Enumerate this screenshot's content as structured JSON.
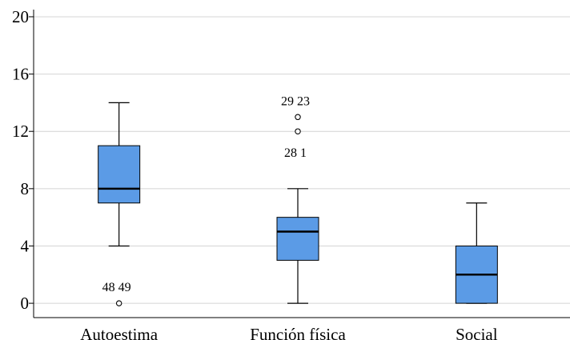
{
  "chart_data": {
    "type": "boxplot",
    "title": "",
    "xlabel": "",
    "ylabel": "",
    "ylim": [
      -1,
      20.5
    ],
    "yticks": [
      0,
      4,
      8,
      12,
      16,
      20
    ],
    "grid": "horizontal",
    "box_color": "#5b9be6",
    "categories": [
      "Autoestima",
      "Función física",
      "Social"
    ],
    "boxes": [
      {
        "category": "Autoestima",
        "whisker_low": 4,
        "q1": 7,
        "median": 8,
        "q3": 11,
        "whisker_high": 14,
        "outliers": [
          {
            "value": 0,
            "label": "48  49",
            "label_side": "above"
          }
        ]
      },
      {
        "category": "Función física",
        "whisker_low": 0,
        "q1": 3,
        "median": 5,
        "q3": 6,
        "whisker_high": 8,
        "outliers": [
          {
            "value": 12,
            "label": "28  1",
            "label_side": "below"
          },
          {
            "value": 13,
            "label": "29  23",
            "label_side": "above"
          }
        ]
      },
      {
        "category": "Social",
        "whisker_low": 0,
        "q1": 0,
        "median": 2,
        "q3": 4,
        "whisker_high": 7,
        "outliers": []
      }
    ]
  }
}
